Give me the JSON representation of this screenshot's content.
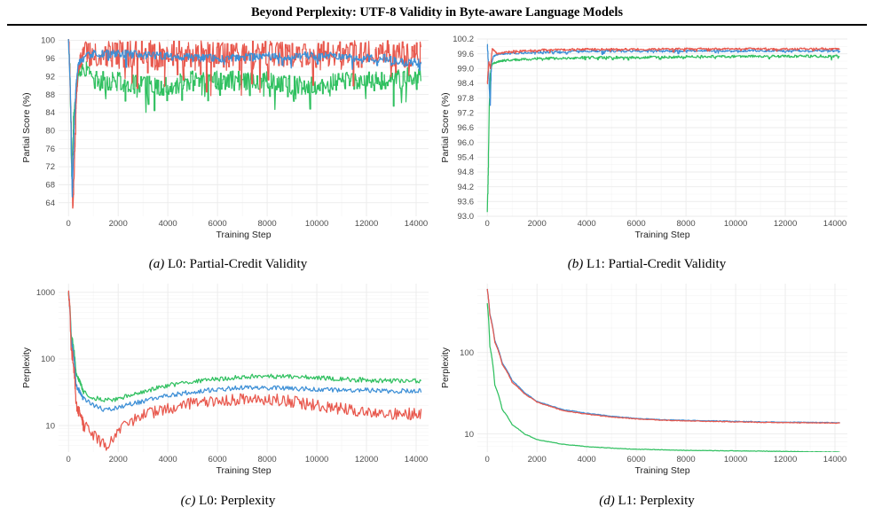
{
  "page": {
    "title": "Beyond Perplexity: UTF-8 Validity in Byte-aware Language Models"
  },
  "colors": {
    "red": "#e8584d",
    "blue": "#3d8fd6",
    "green": "#30c060",
    "grid": "#ebebeb"
  },
  "captions": [
    {
      "label": "(a)",
      "text": "L0: Partial-Credit Validity"
    },
    {
      "label": "(b)",
      "text": "L1: Partial-Credit Validity"
    },
    {
      "label": "(c)",
      "text": "L0: Perplexity"
    },
    {
      "label": "(d)",
      "text": "L1: Perplexity"
    }
  ],
  "chart_data": [
    {
      "type": "line",
      "xlabel": "Training Step",
      "ylabel": "Partial Score (%)",
      "xlim": [
        -400,
        14500
      ],
      "ylim": [
        61,
        100.3
      ],
      "yscale": "linear",
      "xticks": [
        0,
        2000,
        4000,
        6000,
        8000,
        10000,
        12000,
        14000
      ],
      "yticks": [
        64,
        68,
        72,
        76,
        80,
        84,
        88,
        92,
        96,
        100
      ],
      "ytick_labels": [
        "64",
        "68",
        "72",
        "76",
        "80",
        "84",
        "88",
        "92",
        "96",
        "100"
      ],
      "series": [
        {
          "color": "#30c060",
          "noise": 2.2,
          "points": [
            [
              0,
              100
            ],
            [
              60,
              92
            ],
            [
              130,
              70
            ],
            [
              200,
              82
            ],
            [
              300,
              88
            ],
            [
              400,
              93
            ],
            [
              600,
              94
            ],
            [
              1000,
              91
            ],
            [
              2000,
              91
            ],
            [
              3000,
              90
            ],
            [
              4000,
              90
            ],
            [
              5000,
              91
            ],
            [
              6000,
              91
            ],
            [
              7000,
              91
            ],
            [
              8000,
              91
            ],
            [
              9000,
              90
            ],
            [
              10000,
              90
            ],
            [
              11000,
              91
            ],
            [
              12000,
              91
            ],
            [
              13000,
              91
            ],
            [
              13600,
              92
            ],
            [
              14200,
              92
            ]
          ]
        },
        {
          "color": "#e8584d",
          "noise": 3.0,
          "points": [
            [
              0,
              100
            ],
            [
              50,
              95
            ],
            [
              100,
              82
            ],
            [
              170,
              63
            ],
            [
              230,
              70
            ],
            [
              300,
              85
            ],
            [
              380,
              94
            ],
            [
              600,
              97
            ],
            [
              1000,
              97
            ],
            [
              2000,
              97
            ],
            [
              4000,
              97
            ],
            [
              6000,
              97
            ],
            [
              8000,
              97
            ],
            [
              10000,
              97
            ],
            [
              12000,
              97
            ],
            [
              13400,
              97
            ],
            [
              14200,
              97
            ]
          ]
        },
        {
          "color": "#3d8fd6",
          "noise": 0.9,
          "points": [
            [
              0,
              100
            ],
            [
              80,
              88
            ],
            [
              150,
              65
            ],
            [
              220,
              80
            ],
            [
              300,
              90
            ],
            [
              400,
              95
            ],
            [
              700,
              96.5
            ],
            [
              1000,
              97
            ],
            [
              2000,
              97
            ],
            [
              3000,
              96.8
            ],
            [
              4000,
              96.5
            ],
            [
              5000,
              96.2
            ],
            [
              6000,
              96
            ],
            [
              7000,
              96.2
            ],
            [
              8000,
              96.5
            ],
            [
              9000,
              96.5
            ],
            [
              10000,
              96.5
            ],
            [
              11000,
              96.5
            ],
            [
              12000,
              96
            ],
            [
              12800,
              96
            ],
            [
              13200,
              95.2
            ],
            [
              14200,
              95
            ]
          ]
        }
      ]
    },
    {
      "type": "line",
      "xlabel": "Training Step",
      "ylabel": "Partial Score (%)",
      "xlim": [
        -400,
        14500
      ],
      "ylim": [
        93,
        100.2
      ],
      "yscale": "linear",
      "xticks": [
        0,
        2000,
        4000,
        6000,
        8000,
        10000,
        12000,
        14000
      ],
      "yticks": [
        93.0,
        93.6,
        94.2,
        94.8,
        95.4,
        96.0,
        96.6,
        97.2,
        97.8,
        98.4,
        99.0,
        99.6,
        100.2
      ],
      "ytick_labels": [
        "93.0",
        "93.6",
        "94.2",
        "94.8",
        "95.4",
        "96.0",
        "96.6",
        "97.2",
        "97.8",
        "98.4",
        "99.0",
        "99.6",
        "100.2"
      ],
      "series": [
        {
          "color": "#30c060",
          "noise": 0.05,
          "points": [
            [
              0,
              93.2
            ],
            [
              40,
              95
            ],
            [
              80,
              97.5
            ],
            [
              120,
              98.8
            ],
            [
              200,
              99.2
            ],
            [
              500,
              99.3
            ],
            [
              1000,
              99.35
            ],
            [
              2000,
              99.4
            ],
            [
              4000,
              99.45
            ],
            [
              6000,
              99.45
            ],
            [
              8000,
              99.48
            ],
            [
              10000,
              99.5
            ],
            [
              12000,
              99.5
            ],
            [
              14200,
              99.5
            ]
          ]
        },
        {
          "color": "#3d8fd6",
          "noise": 0.04,
          "points": [
            [
              0,
              100
            ],
            [
              40,
              99.2
            ],
            [
              80,
              98.2
            ],
            [
              120,
              97.5
            ],
            [
              160,
              99.2
            ],
            [
              250,
              99.5
            ],
            [
              500,
              99.6
            ],
            [
              1000,
              99.62
            ],
            [
              2000,
              99.66
            ],
            [
              4000,
              99.7
            ],
            [
              6000,
              99.7
            ],
            [
              8000,
              99.72
            ],
            [
              10000,
              99.72
            ],
            [
              12000,
              99.72
            ],
            [
              14200,
              99.72
            ]
          ]
        },
        {
          "color": "#e8584d",
          "noise": 0.04,
          "points": [
            [
              0,
              98.4
            ],
            [
              60,
              99.3
            ],
            [
              120,
              99.0
            ],
            [
              200,
              99.8
            ],
            [
              400,
              99.6
            ],
            [
              1000,
              99.7
            ],
            [
              2000,
              99.75
            ],
            [
              4000,
              99.78
            ],
            [
              6000,
              99.78
            ],
            [
              8000,
              99.8
            ],
            [
              10000,
              99.8
            ],
            [
              12000,
              99.8
            ],
            [
              14200,
              99.8
            ]
          ]
        }
      ]
    },
    {
      "type": "line",
      "xlabel": "Training Step",
      "ylabel": "Perplexity",
      "xlim": [
        -400,
        14500
      ],
      "ylim": [
        4,
        1350
      ],
      "yscale": "log",
      "xticks": [
        0,
        2000,
        4000,
        6000,
        8000,
        10000,
        12000,
        14000
      ],
      "yticks": [
        10,
        100,
        1000
      ],
      "ytick_labels": [
        "10",
        "100",
        "1000"
      ],
      "series": [
        {
          "color": "#30c060",
          "noise": 0.035,
          "points": [
            [
              0,
              1000
            ],
            [
              100,
              250
            ],
            [
              300,
              60
            ],
            [
              600,
              32
            ],
            [
              1000,
              26
            ],
            [
              1500,
              24
            ],
            [
              2000,
              25
            ],
            [
              3000,
              32
            ],
            [
              4000,
              40
            ],
            [
              5000,
              45
            ],
            [
              6000,
              50
            ],
            [
              7000,
              54
            ],
            [
              8000,
              55
            ],
            [
              9000,
              54
            ],
            [
              10000,
              52
            ],
            [
              11000,
              50
            ],
            [
              12000,
              48
            ],
            [
              13000,
              47
            ],
            [
              14200,
              47
            ]
          ]
        },
        {
          "color": "#3d8fd6",
          "noise": 0.035,
          "points": [
            [
              0,
              1000
            ],
            [
              100,
              200
            ],
            [
              300,
              40
            ],
            [
              600,
              25
            ],
            [
              1000,
              20
            ],
            [
              1500,
              17
            ],
            [
              2000,
              19
            ],
            [
              3000,
              23
            ],
            [
              4000,
              28
            ],
            [
              5000,
              32
            ],
            [
              6000,
              35
            ],
            [
              7000,
              37
            ],
            [
              8000,
              37
            ],
            [
              9000,
              36
            ],
            [
              10000,
              35
            ],
            [
              11000,
              34
            ],
            [
              12000,
              34
            ],
            [
              13000,
              33
            ],
            [
              14200,
              33
            ]
          ]
        },
        {
          "color": "#e8584d",
          "noise": 0.09,
          "points": [
            [
              0,
              1000
            ],
            [
              100,
              150
            ],
            [
              300,
              20
            ],
            [
              600,
              10
            ],
            [
              1000,
              7
            ],
            [
              1500,
              5
            ],
            [
              2000,
              8
            ],
            [
              3000,
              14
            ],
            [
              4000,
              18
            ],
            [
              5000,
              22
            ],
            [
              6000,
              24
            ],
            [
              7000,
              25
            ],
            [
              8000,
              25
            ],
            [
              9000,
              23
            ],
            [
              10000,
              20
            ],
            [
              11000,
              18
            ],
            [
              12000,
              16
            ],
            [
              13000,
              15
            ],
            [
              14200,
              15
            ]
          ]
        }
      ]
    },
    {
      "type": "line",
      "xlabel": "Training Step",
      "ylabel": "Perplexity",
      "xlim": [
        -400,
        14500
      ],
      "ylim": [
        6,
        700
      ],
      "yscale": "log",
      "xticks": [
        0,
        2000,
        4000,
        6000,
        8000,
        10000,
        12000,
        14000
      ],
      "yticks": [
        10,
        100,
        1000
      ],
      "ytick_labels": [
        "10",
        "100",
        "1000"
      ],
      "series": [
        {
          "color": "#3d8fd6",
          "noise": 0.004,
          "points": [
            [
              0,
              600
            ],
            [
              100,
              300
            ],
            [
              300,
              140
            ],
            [
              600,
              75
            ],
            [
              1000,
              45
            ],
            [
              1500,
              32
            ],
            [
              2000,
              25
            ],
            [
              3000,
              20
            ],
            [
              4000,
              18
            ],
            [
              5000,
              16.5
            ],
            [
              6000,
              15.5
            ],
            [
              7000,
              15
            ],
            [
              8000,
              14.7
            ],
            [
              9000,
              14.5
            ],
            [
              10000,
              14.3
            ],
            [
              11000,
              14.1
            ],
            [
              12000,
              14
            ],
            [
              13000,
              13.9
            ],
            [
              14200,
              13.8
            ]
          ]
        },
        {
          "color": "#e8584d",
          "noise": 0.004,
          "points": [
            [
              0,
              600
            ],
            [
              100,
              290
            ],
            [
              300,
              135
            ],
            [
              600,
              72
            ],
            [
              1000,
              43
            ],
            [
              1500,
              31
            ],
            [
              2000,
              24.5
            ],
            [
              3000,
              19.5
            ],
            [
              4000,
              17.5
            ],
            [
              5000,
              16.2
            ],
            [
              6000,
              15.3
            ],
            [
              7000,
              14.8
            ],
            [
              8000,
              14.5
            ],
            [
              9000,
              14.3
            ],
            [
              10000,
              14.1
            ],
            [
              11000,
              13.9
            ],
            [
              12000,
              13.8
            ],
            [
              13000,
              13.7
            ],
            [
              14200,
              13.6
            ]
          ]
        },
        {
          "color": "#30c060",
          "noise": 0.003,
          "points": [
            [
              0,
              400
            ],
            [
              100,
              120
            ],
            [
              300,
              40
            ],
            [
              600,
              20
            ],
            [
              1000,
              13
            ],
            [
              1500,
              10
            ],
            [
              2000,
              8.5
            ],
            [
              3000,
              7.5
            ],
            [
              4000,
              7
            ],
            [
              5000,
              6.7
            ],
            [
              6000,
              6.5
            ],
            [
              7000,
              6.4
            ],
            [
              8000,
              6.3
            ],
            [
              9000,
              6.25
            ],
            [
              10000,
              6.2
            ],
            [
              11000,
              6.15
            ],
            [
              12000,
              6.1
            ],
            [
              13000,
              6.05
            ],
            [
              14200,
              6.0
            ]
          ]
        }
      ]
    }
  ]
}
